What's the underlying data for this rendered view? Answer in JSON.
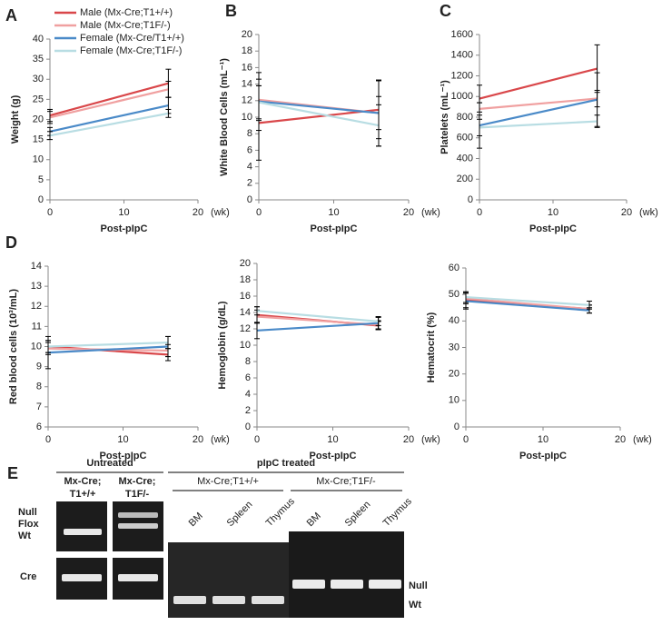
{
  "chart_data": [
    {
      "type": "line",
      "panel": "A",
      "y_label": "Weight (g)",
      "x_label": "Post-pIpC",
      "x_unit": "(wk)",
      "x": [
        0,
        16
      ],
      "xlim": [
        0,
        20
      ],
      "xticks": [
        0,
        10,
        20
      ],
      "ylim": [
        0,
        40
      ],
      "yticks": [
        0,
        5,
        10,
        15,
        20,
        25,
        30,
        35,
        40
      ],
      "legend": "upper left",
      "series": [
        {
          "name": "Male (Mx-Cre;T1+/+)",
          "color": "#d9474a",
          "values": [
            21,
            29
          ],
          "errors": [
            1.5,
            3.5
          ]
        },
        {
          "name": "Male (Mx-Cre;T1F/-)",
          "color": "#f0a0a0",
          "values": [
            20.5,
            27.5
          ],
          "errors": [
            1.5,
            2
          ]
        },
        {
          "name": "Female (Mx-Cre/T1+/+)",
          "color": "#4a8ac8",
          "values": [
            17,
            23.5
          ],
          "errors": [
            1,
            2
          ]
        },
        {
          "name": "Female (Mx-Cre;T1F/-)",
          "color": "#b8dde3",
          "values": [
            16,
            21.5
          ],
          "errors": [
            1,
            1
          ]
        }
      ]
    },
    {
      "type": "line",
      "panel": "B",
      "y_label": "White Blood Cells (mL⁻¹)",
      "x_label": "Post-pIpC",
      "x_unit": "(wk)",
      "x": [
        0,
        16
      ],
      "xlim": [
        0,
        20
      ],
      "xticks": [
        0,
        10,
        20
      ],
      "ylim": [
        0,
        20
      ],
      "yticks": [
        0,
        2,
        4,
        6,
        8,
        10,
        12,
        14,
        16,
        18,
        20
      ],
      "series": [
        {
          "color": "#d9474a",
          "values": [
            9.3,
            10.9
          ],
          "errors": [
            4.5,
            3.5
          ]
        },
        {
          "color": "#f0a0a0",
          "values": [
            12.1,
            10.5
          ],
          "errors": [
            2.5,
            2
          ]
        },
        {
          "color": "#4a8ac8",
          "values": [
            11.9,
            10.5
          ],
          "errors": [
            3.5,
            4
          ]
        },
        {
          "color": "#b8dde3",
          "values": [
            11.8,
            9
          ],
          "errors": [
            2,
            2.5
          ]
        }
      ]
    },
    {
      "type": "line",
      "panel": "C",
      "y_label": "Platelets (mL⁻¹)",
      "x_label": "Post-pIpC",
      "x_unit": "(wk)",
      "x": [
        0,
        16
      ],
      "xlim": [
        0,
        20
      ],
      "xticks": [
        0,
        10,
        20
      ],
      "ylim": [
        0,
        1600
      ],
      "yticks": [
        0,
        200,
        400,
        600,
        800,
        1000,
        1200,
        1400,
        1600
      ],
      "series": [
        {
          "color": "#d9474a",
          "values": [
            980,
            1270
          ],
          "errors": [
            130,
            230
          ]
        },
        {
          "color": "#f0a0a0",
          "values": [
            880,
            980
          ],
          "errors": [
            60,
            80
          ]
        },
        {
          "color": "#4a8ac8",
          "values": [
            720,
            970
          ],
          "errors": [
            220,
            260
          ]
        },
        {
          "color": "#b8dde3",
          "values": [
            700,
            760
          ],
          "errors": [
            80,
            60
          ]
        }
      ]
    },
    {
      "type": "line",
      "panel": "D",
      "y_label": "Red blood cells (10³/mL)",
      "x_label": "Post-pIpC",
      "x_unit": "(wk)",
      "x": [
        0,
        16
      ],
      "xlim": [
        0,
        20
      ],
      "xticks": [
        0,
        10,
        20
      ],
      "ylim": [
        6,
        14
      ],
      "yticks": [
        6,
        7,
        8,
        9,
        10,
        11,
        12,
        13,
        14
      ],
      "series": [
        {
          "color": "#d9474a",
          "values": [
            10,
            9.6
          ],
          "errors": [
            0.3,
            0.3
          ]
        },
        {
          "color": "#f0a0a0",
          "values": [
            9.9,
            9.8
          ],
          "errors": [
            0.3,
            0.3
          ]
        },
        {
          "color": "#4a8ac8",
          "values": [
            9.7,
            10
          ],
          "errors": [
            0.8,
            0.5
          ]
        },
        {
          "color": "#b8dde3",
          "values": [
            10,
            10.2
          ],
          "errors": [
            0.3,
            0.3
          ]
        }
      ]
    },
    {
      "type": "line",
      "y_label": "Hemoglobin (g/dL)",
      "x_label": "Post-pIpC",
      "x_unit": "(wk)",
      "x": [
        0,
        16
      ],
      "xlim": [
        0,
        20
      ],
      "xticks": [
        0,
        10,
        20
      ],
      "ylim": [
        0,
        20
      ],
      "yticks": [
        0,
        2,
        4,
        6,
        8,
        10,
        12,
        14,
        16,
        18,
        20
      ],
      "series": [
        {
          "color": "#d9474a",
          "values": [
            13.7,
            12.4
          ],
          "errors": [
            1,
            0.5
          ]
        },
        {
          "color": "#f0a0a0",
          "values": [
            13.5,
            12.5
          ],
          "errors": [
            0.8,
            0.5
          ]
        },
        {
          "color": "#4a8ac8",
          "values": [
            11.8,
            12.7
          ],
          "errors": [
            1,
            0.8
          ]
        },
        {
          "color": "#b8dde3",
          "values": [
            14.2,
            12.9
          ],
          "errors": [
            0.5,
            0.5
          ]
        }
      ]
    },
    {
      "type": "line",
      "y_label": "Hematocrit (%)",
      "x_label": "Post-pIpC",
      "x_unit": "(wk)",
      "x": [
        0,
        16
      ],
      "xlim": [
        0,
        20
      ],
      "xticks": [
        0,
        10,
        20
      ],
      "ylim": [
        0,
        60
      ],
      "yticks": [
        0,
        10,
        20,
        30,
        40,
        50,
        60
      ],
      "series": [
        {
          "color": "#d9474a",
          "values": [
            48,
            44.5
          ],
          "errors": [
            3,
            1.5
          ]
        },
        {
          "color": "#f0a0a0",
          "values": [
            48.5,
            44.5
          ],
          "errors": [
            2,
            1.5
          ]
        },
        {
          "color": "#4a8ac8",
          "values": [
            47.5,
            44
          ],
          "errors": [
            3,
            1
          ]
        },
        {
          "color": "#b8dde3",
          "values": [
            49,
            46
          ],
          "errors": [
            2,
            1.5
          ]
        }
      ]
    }
  ],
  "gel": {
    "panel": "E",
    "untreated": "Untreated",
    "lanes_untreated": [
      [
        "Mx-Cre;",
        "T1+/+"
      ],
      [
        "Mx-Cre;",
        "T1F/-"
      ]
    ],
    "bands_left": [
      "Null",
      "Flox",
      "Wt"
    ],
    "cre": "Cre",
    "treated": "pIpC treated",
    "groups": [
      "Mx-Cre;T1+/+",
      "Mx-Cre;T1F/-"
    ],
    "lanes_treated": [
      "BM",
      "Spleen",
      "Thymus",
      "BM",
      "Spleen",
      "Thymus"
    ],
    "bands_right": [
      "Null",
      "Wt"
    ]
  }
}
